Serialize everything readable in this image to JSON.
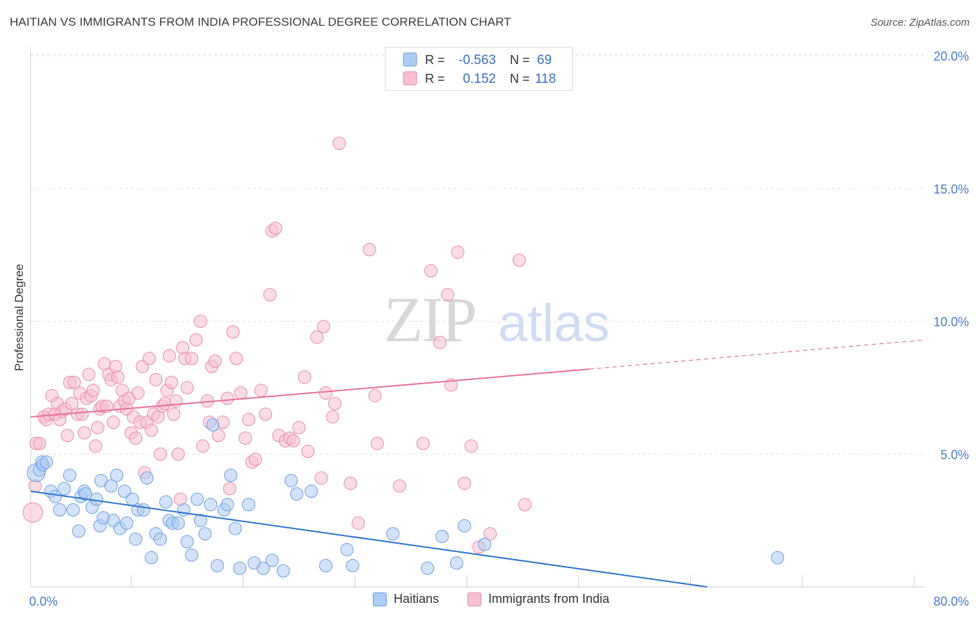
{
  "title": "HAITIAN VS IMMIGRANTS FROM INDIA PROFESSIONAL DEGREE CORRELATION CHART",
  "source": "Source: ZipAtlas.com",
  "watermark": {
    "zip": "ZIP",
    "atlas": "atlas"
  },
  "colors": {
    "blue_fill": "#aecbf2",
    "blue_stroke": "#6a9fe0",
    "blue_line": "#2f74d0",
    "pink_fill": "#f6bfd2",
    "pink_stroke": "#e88aaa",
    "pink_line": "#e8709a",
    "axis_text": "#4a7bc8",
    "grid": "#e0e0e0"
  },
  "legend_top": {
    "rows": [
      {
        "r_label": "R =",
        "r_value": "-0.563",
        "n_label": "N =",
        "n_value": "69"
      },
      {
        "r_label": "R =",
        "r_value": "0.152",
        "n_label": "N =",
        "n_value": "118"
      }
    ]
  },
  "legend_bottom": [
    "Haitians",
    "Immigrants from India"
  ],
  "chart_data": {
    "type": "scatter",
    "title": "HAITIAN VS IMMIGRANTS FROM INDIA PROFESSIONAL DEGREE CORRELATION CHART",
    "xlabel": "",
    "ylabel": "Professional Degree",
    "xlim": [
      0,
      80
    ],
    "ylim": [
      0,
      20
    ],
    "x_tick_labels": [
      "0.0%",
      "80.0%"
    ],
    "y_ticks": [
      5,
      10,
      15,
      20
    ],
    "y_tick_labels": [
      "5.0%",
      "10.0%",
      "15.0%",
      "20.0%"
    ],
    "grid": true,
    "legend": "top-center",
    "series": [
      {
        "name": "Haitians",
        "R": -0.563,
        "N": 69,
        "trend": {
          "x": [
            0,
            60.5
          ],
          "y": [
            3.6,
            0.0
          ]
        },
        "points": [
          [
            0.5,
            4.3
          ],
          [
            0.8,
            4.4
          ],
          [
            1.0,
            4.7
          ],
          [
            1.1,
            4.6
          ],
          [
            1.4,
            4.7
          ],
          [
            1.8,
            3.6
          ],
          [
            2.2,
            3.4
          ],
          [
            2.6,
            2.9
          ],
          [
            3.0,
            3.7
          ],
          [
            3.5,
            4.2
          ],
          [
            3.8,
            2.9
          ],
          [
            4.3,
            2.1
          ],
          [
            4.5,
            3.4
          ],
          [
            4.8,
            3.6
          ],
          [
            4.9,
            3.5
          ],
          [
            5.5,
            3.0
          ],
          [
            5.9,
            3.3
          ],
          [
            6.2,
            2.3
          ],
          [
            6.3,
            4.0
          ],
          [
            6.5,
            2.6
          ],
          [
            7.2,
            3.8
          ],
          [
            7.4,
            2.5
          ],
          [
            7.7,
            4.2
          ],
          [
            8.0,
            2.2
          ],
          [
            8.4,
            3.6
          ],
          [
            8.6,
            2.4
          ],
          [
            9.1,
            3.3
          ],
          [
            9.4,
            1.8
          ],
          [
            9.6,
            2.9
          ],
          [
            10.1,
            2.9
          ],
          [
            10.4,
            4.1
          ],
          [
            10.8,
            1.1
          ],
          [
            11.2,
            2.0
          ],
          [
            11.6,
            1.8
          ],
          [
            12.1,
            3.2
          ],
          [
            12.4,
            2.5
          ],
          [
            12.7,
            2.4
          ],
          [
            13.2,
            2.4
          ],
          [
            13.7,
            2.9
          ],
          [
            14.0,
            1.7
          ],
          [
            14.4,
            1.2
          ],
          [
            14.9,
            3.3
          ],
          [
            15.2,
            2.5
          ],
          [
            15.6,
            2.0
          ],
          [
            16.1,
            3.1
          ],
          [
            16.3,
            6.1
          ],
          [
            16.7,
            0.8
          ],
          [
            17.3,
            2.9
          ],
          [
            17.6,
            3.1
          ],
          [
            17.9,
            4.2
          ],
          [
            18.3,
            2.2
          ],
          [
            18.7,
            0.7
          ],
          [
            19.5,
            3.1
          ],
          [
            20.0,
            0.9
          ],
          [
            20.8,
            0.7
          ],
          [
            21.6,
            1.0
          ],
          [
            22.6,
            0.6
          ],
          [
            23.3,
            4.0
          ],
          [
            23.8,
            3.5
          ],
          [
            25.1,
            3.6
          ],
          [
            26.4,
            0.8
          ],
          [
            28.3,
            1.4
          ],
          [
            28.8,
            0.8
          ],
          [
            32.4,
            2.0
          ],
          [
            35.5,
            0.7
          ],
          [
            36.8,
            1.9
          ],
          [
            38.1,
            0.9
          ],
          [
            38.8,
            2.3
          ],
          [
            40.6,
            1.6
          ],
          [
            66.8,
            1.1
          ]
        ]
      },
      {
        "name": "Immigrants from India",
        "R": 0.152,
        "N": 118,
        "trend": {
          "x": [
            0,
            50
          ],
          "y": [
            6.4,
            8.2
          ]
        },
        "trend_extension": {
          "x": [
            50,
            80
          ],
          "y": [
            8.2,
            9.3
          ]
        },
        "points": [
          [
            0.2,
            2.8
          ],
          [
            0.4,
            3.8
          ],
          [
            0.5,
            5.4
          ],
          [
            0.8,
            5.4
          ],
          [
            1.2,
            6.4
          ],
          [
            1.4,
            6.3
          ],
          [
            1.6,
            6.5
          ],
          [
            1.9,
            7.2
          ],
          [
            2.2,
            6.5
          ],
          [
            2.4,
            6.9
          ],
          [
            2.6,
            6.3
          ],
          [
            2.8,
            6.6
          ],
          [
            3.1,
            6.7
          ],
          [
            3.3,
            5.7
          ],
          [
            3.5,
            7.7
          ],
          [
            3.7,
            6.9
          ],
          [
            3.9,
            7.7
          ],
          [
            4.2,
            6.5
          ],
          [
            4.4,
            7.3
          ],
          [
            4.6,
            6.5
          ],
          [
            4.8,
            5.8
          ],
          [
            5.0,
            7.1
          ],
          [
            5.2,
            8.0
          ],
          [
            5.4,
            7.2
          ],
          [
            5.6,
            7.4
          ],
          [
            5.8,
            5.3
          ],
          [
            6.0,
            6.0
          ],
          [
            6.2,
            6.7
          ],
          [
            6.4,
            6.8
          ],
          [
            6.6,
            8.4
          ],
          [
            6.8,
            6.8
          ],
          [
            7.0,
            8.0
          ],
          [
            7.2,
            7.8
          ],
          [
            7.4,
            6.2
          ],
          [
            7.6,
            8.3
          ],
          [
            7.8,
            7.9
          ],
          [
            8.0,
            6.8
          ],
          [
            8.2,
            7.4
          ],
          [
            8.4,
            7.0
          ],
          [
            8.6,
            6.7
          ],
          [
            8.8,
            7.1
          ],
          [
            9.0,
            5.8
          ],
          [
            9.2,
            6.4
          ],
          [
            9.4,
            5.6
          ],
          [
            9.6,
            7.3
          ],
          [
            9.8,
            6.2
          ],
          [
            10.0,
            8.3
          ],
          [
            10.2,
            4.3
          ],
          [
            10.4,
            6.2
          ],
          [
            10.6,
            8.6
          ],
          [
            10.8,
            5.9
          ],
          [
            11.0,
            6.5
          ],
          [
            11.2,
            7.8
          ],
          [
            11.4,
            6.4
          ],
          [
            11.6,
            5.0
          ],
          [
            11.8,
            6.8
          ],
          [
            12.0,
            6.9
          ],
          [
            12.2,
            7.4
          ],
          [
            12.4,
            8.7
          ],
          [
            12.6,
            7.7
          ],
          [
            12.8,
            6.5
          ],
          [
            13.0,
            7.0
          ],
          [
            13.2,
            5.0
          ],
          [
            13.4,
            3.3
          ],
          [
            13.6,
            9.0
          ],
          [
            13.8,
            8.6
          ],
          [
            14.0,
            7.5
          ],
          [
            14.4,
            8.6
          ],
          [
            14.8,
            9.3
          ],
          [
            15.2,
            10.0
          ],
          [
            15.4,
            5.3
          ],
          [
            15.8,
            7.0
          ],
          [
            16.0,
            6.2
          ],
          [
            16.2,
            8.3
          ],
          [
            16.5,
            8.5
          ],
          [
            16.8,
            5.7
          ],
          [
            17.2,
            6.2
          ],
          [
            17.6,
            7.1
          ],
          [
            17.8,
            3.7
          ],
          [
            18.1,
            9.6
          ],
          [
            18.4,
            8.6
          ],
          [
            18.8,
            7.3
          ],
          [
            19.2,
            5.6
          ],
          [
            19.5,
            6.3
          ],
          [
            19.8,
            4.7
          ],
          [
            20.1,
            4.8
          ],
          [
            20.6,
            7.4
          ],
          [
            21.0,
            6.5
          ],
          [
            21.4,
            11.0
          ],
          [
            21.6,
            13.4
          ],
          [
            21.9,
            13.5
          ],
          [
            22.2,
            5.7
          ],
          [
            22.8,
            5.5
          ],
          [
            23.2,
            5.6
          ],
          [
            23.5,
            5.5
          ],
          [
            24.0,
            6.0
          ],
          [
            24.5,
            7.9
          ],
          [
            24.8,
            5.1
          ],
          [
            25.6,
            9.4
          ],
          [
            26.0,
            4.1
          ],
          [
            26.2,
            9.8
          ],
          [
            26.4,
            7.3
          ],
          [
            27.0,
            6.4
          ],
          [
            27.2,
            6.9
          ],
          [
            27.6,
            16.7
          ],
          [
            28.6,
            3.9
          ],
          [
            29.3,
            2.4
          ],
          [
            30.3,
            12.7
          ],
          [
            30.8,
            7.2
          ],
          [
            31.0,
            5.4
          ],
          [
            33.0,
            3.8
          ],
          [
            35.1,
            5.4
          ],
          [
            35.8,
            11.9
          ],
          [
            36.6,
            9.2
          ],
          [
            37.3,
            11.0
          ],
          [
            37.6,
            7.6
          ],
          [
            38.2,
            12.6
          ],
          [
            38.8,
            3.9
          ],
          [
            39.4,
            5.3
          ],
          [
            40.1,
            1.5
          ],
          [
            41.1,
            2.0
          ],
          [
            43.7,
            12.3
          ],
          [
            44.2,
            3.1
          ]
        ]
      }
    ]
  }
}
